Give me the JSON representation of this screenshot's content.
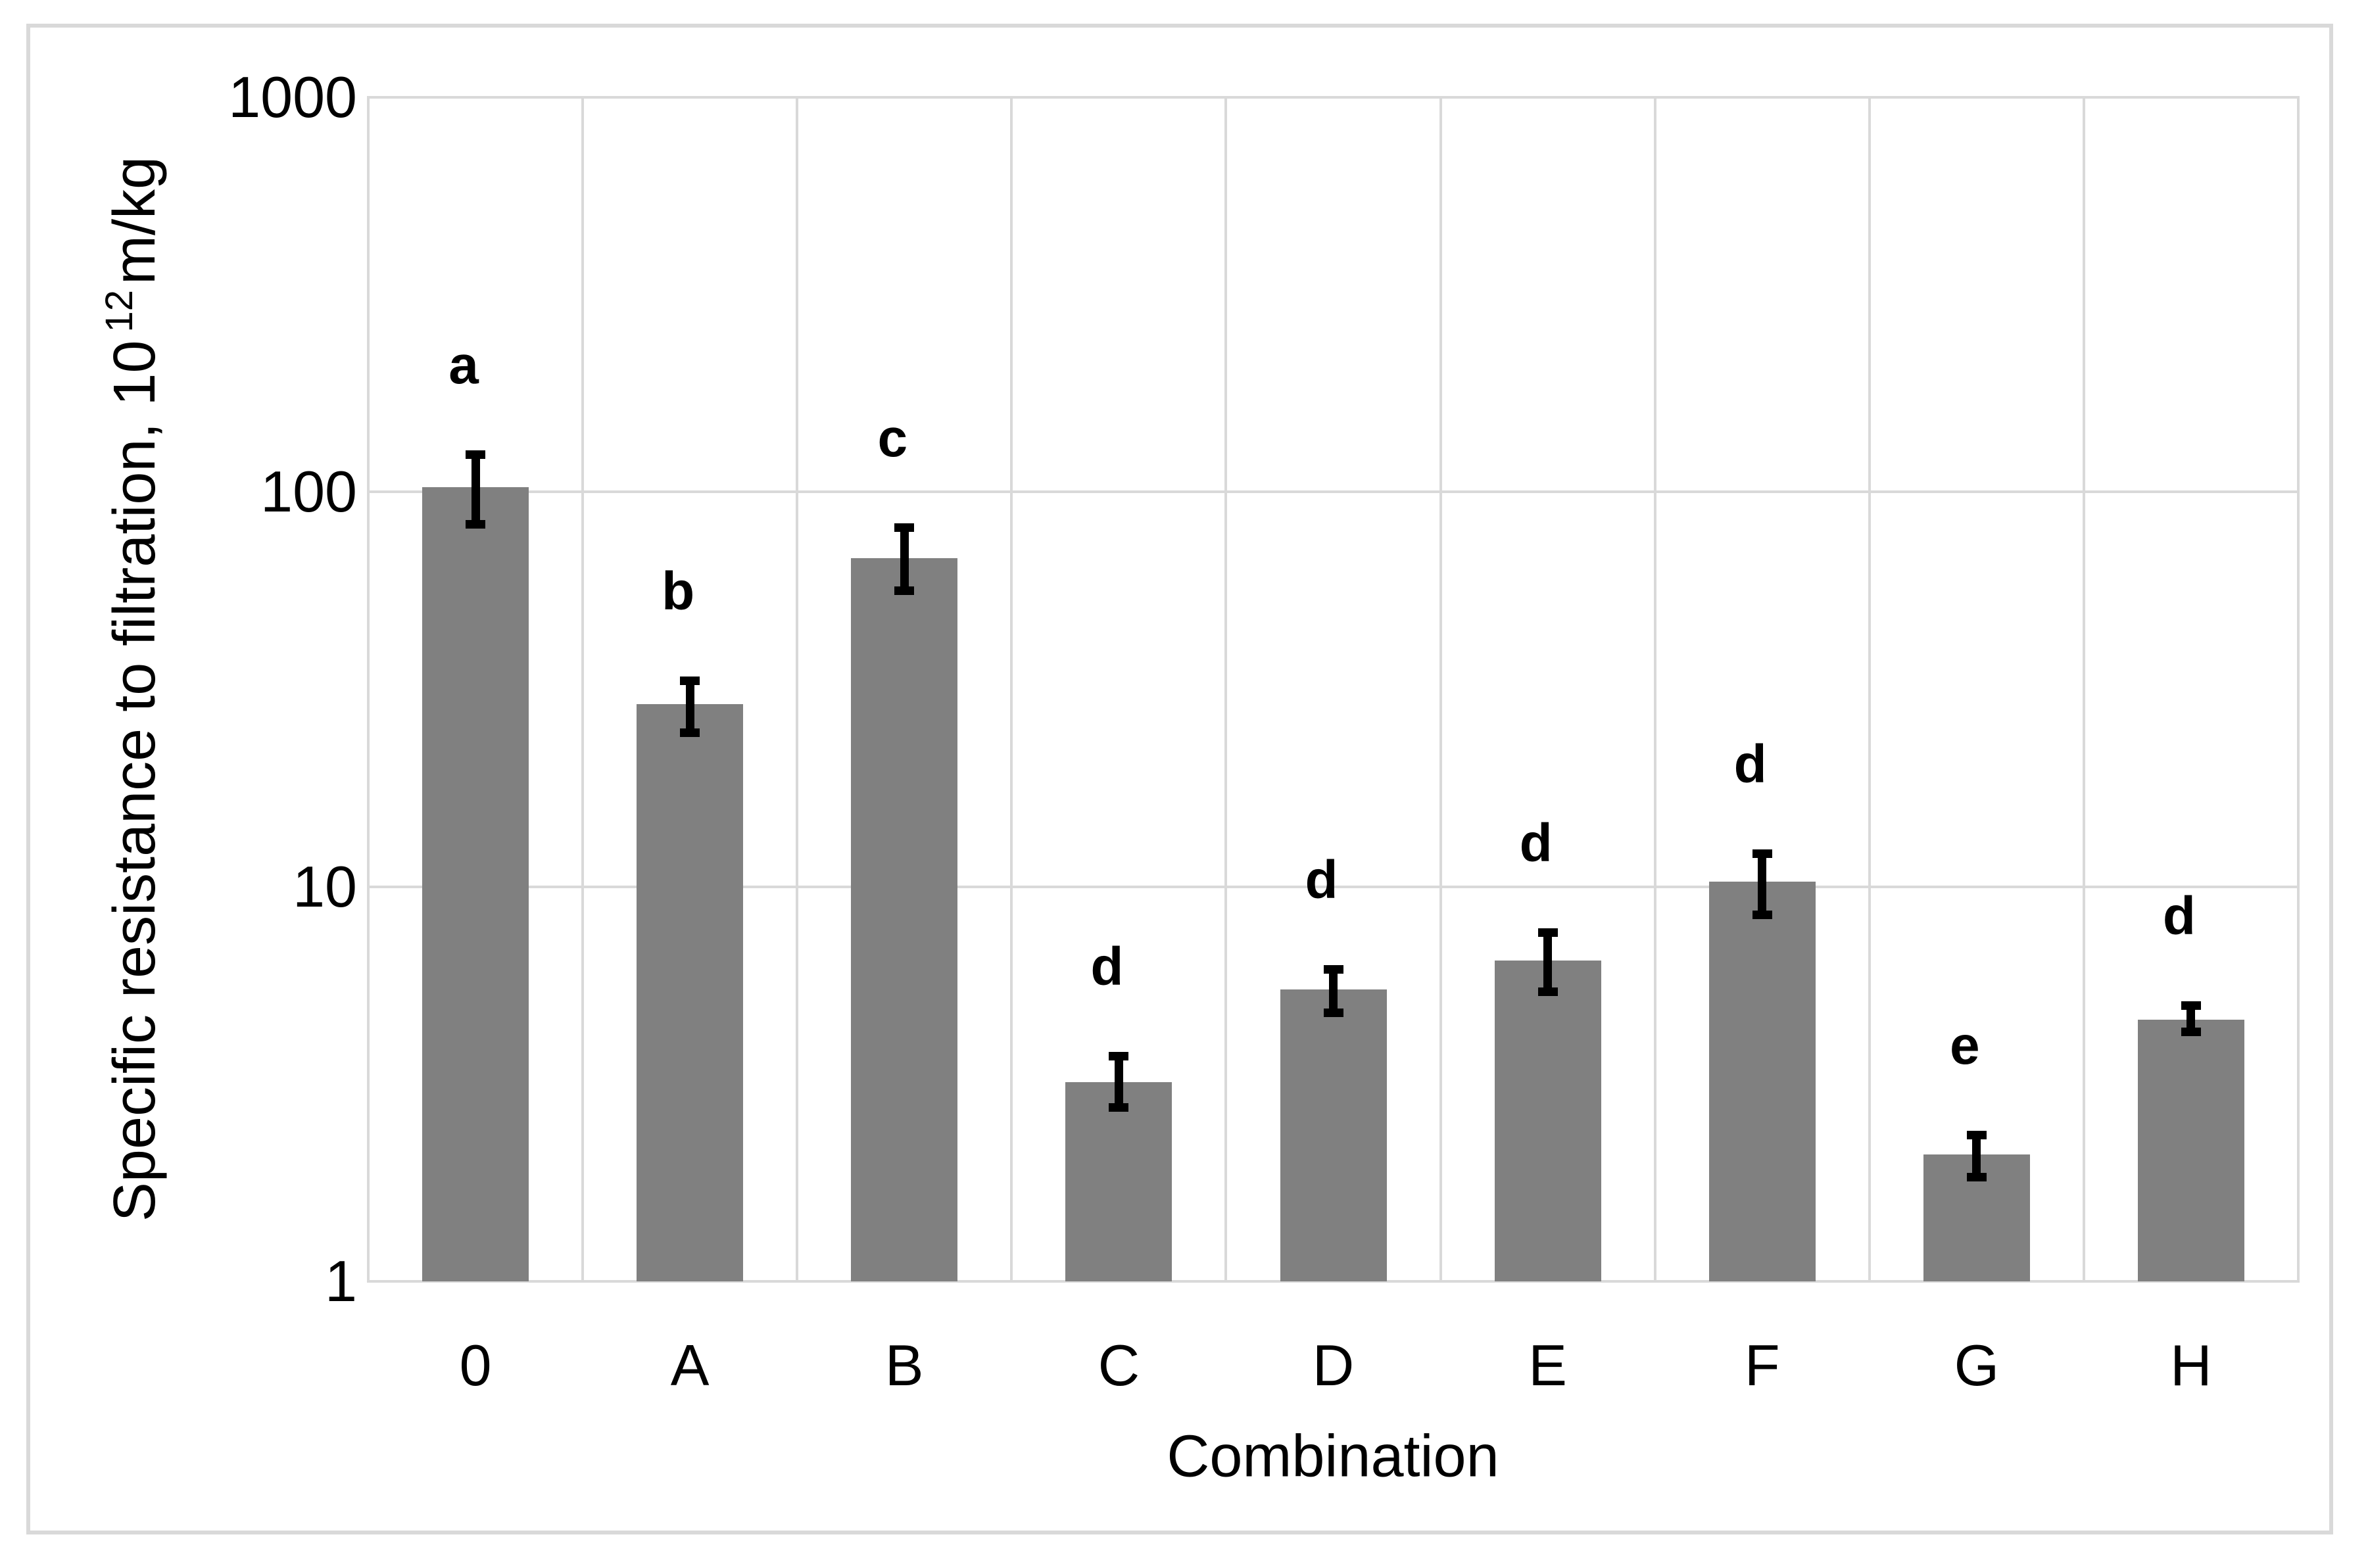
{
  "figure": {
    "background": "#ffffff",
    "border_color": "#d9d9d9"
  },
  "chart_data": {
    "type": "bar",
    "title": "",
    "xlabel": "Combination",
    "ylabel": "Specific resistance to filtration, 10^12 m/kg",
    "ylabel_parts": {
      "prefix": "Specific resistance to filtration, 10",
      "superscript": "12",
      "suffix": "m/kg"
    },
    "y_scale": "log10",
    "ylim": [
      1,
      1000
    ],
    "y_ticks": [
      "1000",
      "100",
      "10",
      "1"
    ],
    "y_tick_values": [
      1000,
      100,
      10,
      1
    ],
    "grid": true,
    "legend": "none",
    "bar_color": "#808080",
    "gridline_color": "#d9d9d9",
    "error_bar_color": "#000000",
    "categories": [
      "0",
      "A",
      "B",
      "C",
      "D",
      "E",
      "F",
      "G",
      "H"
    ],
    "values": [
      103,
      29,
      68,
      3.2,
      5.5,
      6.5,
      10.3,
      2.1,
      4.6
    ],
    "error_low": [
      81,
      24,
      55,
      2.7,
      4.7,
      5.3,
      8.3,
      1.8,
      4.2
    ],
    "error_high": [
      127,
      34,
      83,
      3.8,
      6.3,
      7.8,
      12.4,
      2.4,
      5.1
    ],
    "significance_letters": [
      "a",
      "b",
      "c",
      "d",
      "d",
      "d",
      "d",
      "e",
      "d"
    ]
  }
}
